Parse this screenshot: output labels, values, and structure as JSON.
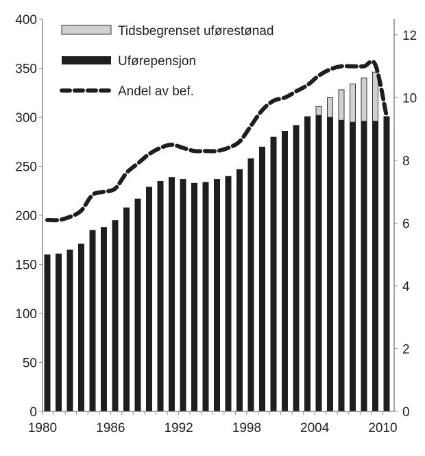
{
  "chart_data": {
    "type": "bar",
    "title": "",
    "xlabel": "",
    "ylabel": "",
    "y2label": "",
    "x": [
      1980,
      1981,
      1982,
      1983,
      1984,
      1985,
      1986,
      1987,
      1988,
      1989,
      1990,
      1991,
      1992,
      1993,
      1994,
      1995,
      1996,
      1997,
      1998,
      1999,
      2000,
      2001,
      2002,
      2003,
      2004,
      2005,
      2006,
      2007,
      2008,
      2009,
      2010
    ],
    "x_tick_labels": [
      "1980",
      "1986",
      "1992",
      "1998",
      "2004",
      "2010"
    ],
    "ylim": [
      0,
      400
    ],
    "y_ticks": [
      0,
      50,
      100,
      150,
      200,
      250,
      300,
      350,
      400
    ],
    "y2lim": [
      0,
      12.5
    ],
    "y2_ticks": [
      0,
      2,
      4,
      6,
      8,
      10,
      12
    ],
    "grid": false,
    "legend_position": "top-left",
    "series": [
      {
        "name": "Tidsbegrenset uførestønad",
        "kind": "bar-stacked",
        "color": "#d0d0d0",
        "values": [
          0,
          0,
          0,
          0,
          0,
          0,
          0,
          0,
          0,
          0,
          0,
          0,
          0,
          0,
          0,
          0,
          0,
          0,
          0,
          0,
          0,
          0,
          0,
          0,
          9,
          20,
          31,
          39,
          44,
          50,
          0
        ]
      },
      {
        "name": "Uførepensjon",
        "kind": "bar",
        "color": "#1e1e1e",
        "values": [
          160,
          161,
          165,
          171,
          185,
          188,
          195,
          208,
          217,
          229,
          235,
          239,
          237,
          233,
          234,
          237,
          240,
          247,
          258,
          270,
          280,
          286,
          292,
          301,
          302,
          300,
          297,
          295,
          296,
          296,
          301
        ]
      },
      {
        "name": "Andel av bef.",
        "kind": "line-dashed",
        "axis": "right",
        "color": "#1e1e1e",
        "values": [
          6.1,
          6.1,
          6.2,
          6.4,
          6.9,
          7.0,
          7.1,
          7.6,
          7.9,
          8.2,
          8.4,
          8.5,
          8.4,
          8.3,
          8.3,
          8.3,
          8.4,
          8.6,
          9.1,
          9.6,
          9.9,
          10.0,
          10.2,
          10.4,
          10.7,
          10.9,
          11.0,
          11.0,
          11.0,
          11.05,
          9.4
        ]
      }
    ]
  }
}
